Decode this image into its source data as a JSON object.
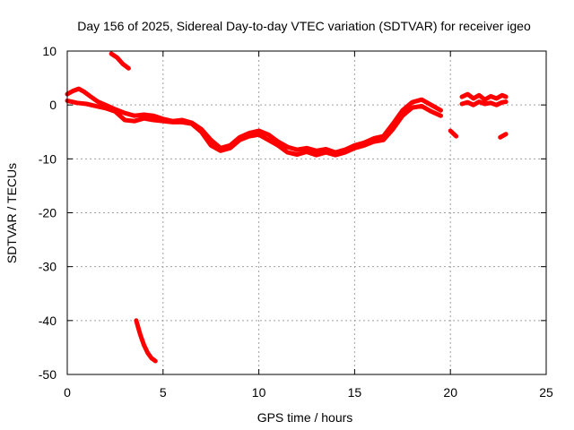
{
  "chart_data": {
    "type": "line",
    "title": "Day 156 of 2025, Sidereal Day-to-day VTEC variation (SDTVAR) for receiver igeo",
    "xlabel": "GPS time / hours",
    "ylabel": "SDTVAR / TECUs",
    "xlim": [
      0,
      25
    ],
    "ylim": [
      -50,
      10
    ],
    "xticks": [
      0,
      5,
      10,
      15,
      20,
      25
    ],
    "yticks": [
      10,
      0,
      -10,
      -20,
      -30,
      -40,
      -50
    ],
    "grid": true,
    "series_color": "#ff0000",
    "series": [
      {
        "name": "segment-1",
        "x": [
          2.3,
          2.6,
          2.9,
          3.2
        ],
        "y": [
          9.5,
          8.8,
          7.6,
          6.8
        ]
      },
      {
        "name": "segment-2",
        "x": [
          3.6,
          3.8,
          4.0,
          4.2,
          4.4,
          4.6
        ],
        "y": [
          -40,
          -42.5,
          -44.5,
          -46,
          -47,
          -47.5
        ]
      },
      {
        "name": "segment-3",
        "x": [
          0.0,
          0.3,
          0.6,
          0.9,
          1.2,
          1.6,
          2.0,
          2.5,
          3.0,
          3.5,
          4.0,
          4.5,
          5.0,
          5.5,
          6.0,
          6.5,
          7.0,
          7.5,
          8.0,
          8.5,
          9.0,
          9.5,
          10.0,
          10.5,
          11.0,
          11.5,
          12.0,
          12.5,
          13.0,
          13.5,
          14.0,
          14.5,
          15.0,
          15.5,
          16.0,
          16.5,
          17.0,
          17.5,
          18.0,
          18.5,
          19.0,
          19.5
        ],
        "y": [
          2.0,
          2.6,
          3.0,
          2.4,
          1.6,
          0.6,
          0.0,
          -0.8,
          -1.5,
          -2.0,
          -1.8,
          -2.0,
          -2.6,
          -3.0,
          -2.8,
          -3.3,
          -4.5,
          -6.5,
          -8.0,
          -7.5,
          -6.0,
          -5.2,
          -4.8,
          -5.5,
          -6.8,
          -7.8,
          -8.3,
          -8.0,
          -8.5,
          -8.2,
          -8.8,
          -8.3,
          -7.5,
          -7.0,
          -6.2,
          -5.8,
          -3.5,
          -1.0,
          0.5,
          1.0,
          0.0,
          -1.0
        ]
      },
      {
        "name": "segment-4",
        "x": [
          0.0,
          0.5,
          1.0,
          1.5,
          2.0,
          2.5,
          3.0,
          3.5,
          4.0,
          4.5,
          5.0,
          5.5,
          6.0,
          6.5,
          7.0,
          7.5,
          8.0,
          8.5,
          9.0,
          9.5,
          10.0,
          10.5,
          11.0,
          11.5,
          12.0,
          12.5,
          13.0,
          13.5,
          14.0,
          14.5,
          15.0,
          15.5,
          16.0,
          16.5,
          17.0,
          17.5,
          18.0,
          18.5,
          19.0,
          19.5
        ],
        "y": [
          0.8,
          0.4,
          0.2,
          -0.2,
          -0.6,
          -1.2,
          -2.8,
          -3.0,
          -2.5,
          -2.8,
          -3.0,
          -3.2,
          -3.2,
          -3.5,
          -5.0,
          -7.5,
          -8.5,
          -8.0,
          -6.5,
          -5.8,
          -5.5,
          -6.5,
          -7.5,
          -8.8,
          -9.2,
          -8.7,
          -9.3,
          -8.8,
          -9.3,
          -8.8,
          -8.0,
          -7.5,
          -6.8,
          -6.5,
          -4.5,
          -2.0,
          -0.5,
          -0.2,
          -1.2,
          -2.0
        ]
      },
      {
        "name": "segment-5",
        "x": [
          20.0,
          20.3
        ],
        "y": [
          -4.8,
          -5.8
        ]
      },
      {
        "name": "segment-6",
        "x": [
          20.6,
          20.9,
          21.2,
          21.5,
          21.8,
          22.1,
          22.4,
          22.7,
          22.9
        ],
        "y": [
          1.5,
          2.0,
          1.2,
          1.8,
          1.0,
          1.6,
          1.2,
          1.8,
          1.5
        ]
      },
      {
        "name": "segment-7",
        "x": [
          20.6,
          20.9,
          21.2,
          21.5,
          21.8,
          22.1,
          22.4,
          22.7,
          22.9
        ],
        "y": [
          0.2,
          0.5,
          0.0,
          0.6,
          0.2,
          0.4,
          0.0,
          0.5,
          0.6
        ]
      },
      {
        "name": "segment-8",
        "x": [
          22.6,
          22.9
        ],
        "y": [
          -6.0,
          -5.4
        ]
      }
    ]
  }
}
